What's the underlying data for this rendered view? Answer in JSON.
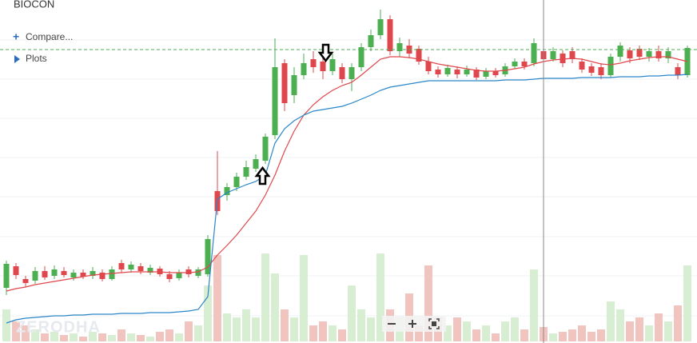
{
  "toolbar": {
    "compare": "Compare...",
    "plots": "Plots"
  },
  "watermark": "ZERODHA",
  "chart_data": {
    "type": "candlestick",
    "title": "BIOCON",
    "up_color": "#4caf50",
    "down_color": "#e0474c",
    "volume_up_color": "#d8eed3",
    "volume_down_color": "#f2c4bf",
    "ylim": [
      0,
      429
    ],
    "y2lim": [
      0,
      110
    ],
    "open": [
      69,
      96,
      80,
      78,
      90,
      84,
      90,
      82,
      88,
      84,
      88,
      80,
      100,
      92,
      96,
      88,
      93,
      86,
      81,
      92,
      84,
      86,
      190,
      185,
      195,
      208,
      218,
      228,
      260,
      350,
      310,
      335,
      355,
      352,
      340,
      345,
      330,
      345,
      370,
      385,
      405,
      365,
      372,
      368,
      352,
      342,
      336,
      342,
      336,
      342,
      333,
      340,
      336,
      346,
      352,
      350,
      365,
      355,
      362,
      365,
      352,
      346,
      345,
      335,
      358,
      366,
      368,
      358,
      365,
      356,
      345,
      335
    ],
    "high": [
      103,
      100,
      84,
      95,
      96,
      97,
      95,
      92,
      92,
      95,
      92,
      96,
      104,
      102,
      100,
      98,
      96,
      90,
      92,
      96,
      95,
      135,
      240,
      200,
      213,
      228,
      236,
      262,
      381,
      355,
      345,
      362,
      365,
      358,
      362,
      350,
      350,
      375,
      392,
      417,
      410,
      382,
      380,
      372,
      358,
      346,
      348,
      346,
      347,
      345,
      344,
      344,
      350,
      356,
      356,
      381,
      370,
      370,
      366,
      370,
      356,
      350,
      350,
      362,
      376,
      370,
      372,
      369,
      372,
      370,
      350,
      372
    ],
    "low": [
      60,
      80,
      70,
      74,
      79,
      80,
      82,
      78,
      80,
      80,
      77,
      78,
      88,
      88,
      86,
      85,
      83,
      76,
      78,
      82,
      81,
      83,
      160,
      178,
      190,
      204,
      214,
      224,
      255,
      290,
      300,
      330,
      338,
      330,
      335,
      325,
      315,
      340,
      365,
      380,
      360,
      358,
      356,
      348,
      336,
      332,
      333,
      331,
      333,
      329,
      330,
      332,
      333,
      343,
      342,
      346,
      350,
      352,
      345,
      350,
      338,
      334,
      330,
      332,
      352,
      350,
      354,
      352,
      352,
      350,
      330,
      332
    ],
    "close": [
      99,
      85,
      75,
      90,
      82,
      92,
      85,
      88,
      83,
      90,
      80,
      92,
      92,
      98,
      90,
      94,
      86,
      80,
      88,
      86,
      92,
      130,
      165,
      195,
      208,
      220,
      230,
      258,
      345,
      300,
      335,
      350,
      345,
      340,
      355,
      330,
      345,
      370,
      385,
      405,
      365,
      375,
      362,
      352,
      340,
      336,
      344,
      336,
      342,
      332,
      340,
      335,
      346,
      352,
      346,
      375,
      355,
      365,
      350,
      355,
      342,
      338,
      335,
      358,
      372,
      356,
      358,
      365,
      356,
      365,
      335,
      369
    ],
    "volume": [
      40,
      25,
      20,
      15,
      10,
      12,
      8,
      10,
      6,
      12,
      10,
      8,
      15,
      10,
      8,
      6,
      12,
      15,
      10,
      25,
      20,
      70,
      108,
      35,
      30,
      40,
      30,
      110,
      85,
      40,
      30,
      108,
      20,
      25,
      20,
      15,
      70,
      40,
      30,
      110,
      40,
      30,
      60,
      20,
      95,
      30,
      20,
      30,
      25,
      15,
      20,
      10,
      25,
      30,
      15,
      90,
      18,
      10,
      12,
      15,
      20,
      12,
      15,
      50,
      40,
      25,
      30,
      20,
      35,
      25,
      45,
      95
    ],
    "lines": [
      {
        "color": "#e0474c",
        "values": [
          65,
          68,
          70,
          73,
          75,
          77,
          79,
          81,
          83,
          85,
          86,
          87,
          88,
          89,
          89,
          89,
          89,
          88,
          88,
          88,
          89,
          95,
          110,
          122,
          135,
          150,
          165,
          185,
          210,
          240,
          265,
          285,
          298,
          308,
          316,
          322,
          326,
          335,
          345,
          355,
          358,
          358,
          357,
          355,
          352,
          349,
          347,
          345,
          343,
          341,
          340,
          340,
          341,
          343,
          345,
          349,
          352,
          354,
          355,
          356,
          355,
          352,
          349,
          348,
          350,
          353,
          355,
          357,
          358,
          358,
          355,
          352
        ]
      },
      {
        "color": "#2a86c8",
        "values": [
          25,
          29,
          31,
          32,
          33,
          34,
          34,
          35,
          35,
          36,
          36,
          36,
          37,
          37,
          37,
          38,
          38,
          38,
          39,
          40,
          42,
          58,
          180,
          188,
          193,
          198,
          202,
          210,
          250,
          268,
          278,
          285,
          290,
          292,
          294,
          296,
          300,
          305,
          310,
          316,
          320,
          322,
          324,
          326,
          328,
          328,
          328,
          328,
          328,
          328,
          328,
          328,
          329,
          329,
          329,
          330,
          331,
          331,
          331,
          331,
          332,
          332,
          332,
          332,
          333,
          333,
          333,
          334,
          334,
          335,
          335,
          336
        ]
      }
    ]
  }
}
